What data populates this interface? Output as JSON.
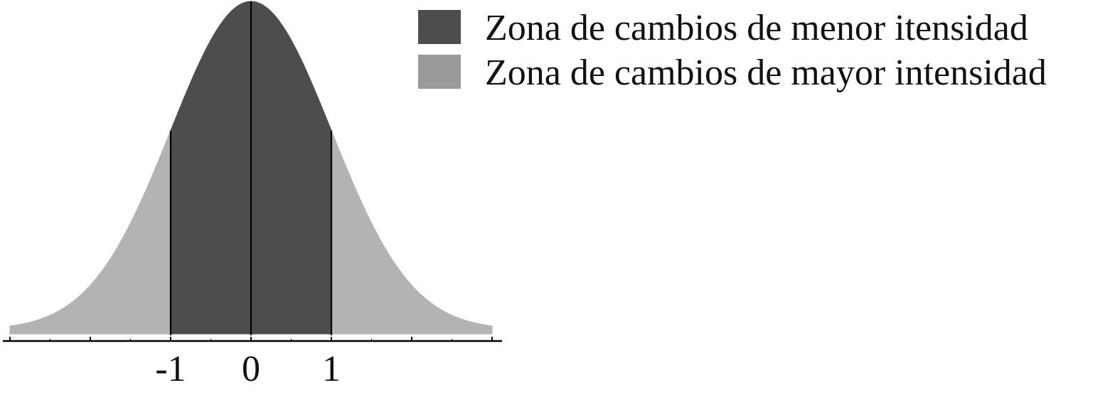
{
  "chart_data": {
    "type": "area",
    "title": "",
    "xlabel": "",
    "ylabel": "",
    "distribution": "standard-normal",
    "xlim": [
      -3,
      3
    ],
    "major_ticks": [
      -3,
      -2,
      -1,
      0,
      1,
      2,
      3
    ],
    "tick_labels": [
      {
        "value": -1,
        "text": "-1"
      },
      {
        "value": 0,
        "text": "0"
      },
      {
        "value": 1,
        "text": "1"
      }
    ],
    "vertical_lines": [
      -1,
      0,
      1
    ],
    "regions": [
      {
        "name": "Zona de cambios de menor itensidad",
        "from": -1,
        "to": 1,
        "color": "#4d4d4d"
      },
      {
        "name": "Zona de cambios de mayor intensidad",
        "from": -3,
        "to": -1,
        "color": "#b3b3b3"
      },
      {
        "name": "Zona de cambios de mayor intensidad",
        "from": 1,
        "to": 3,
        "color": "#b3b3b3"
      }
    ],
    "legend": {
      "placement": "top-right",
      "entries": [
        {
          "label": "Zona de cambios de menor itensidad",
          "color": "#4d4d4d"
        },
        {
          "label": "Zona de cambios de mayor intensidad",
          "color": "#999999"
        }
      ]
    },
    "grid": false
  }
}
